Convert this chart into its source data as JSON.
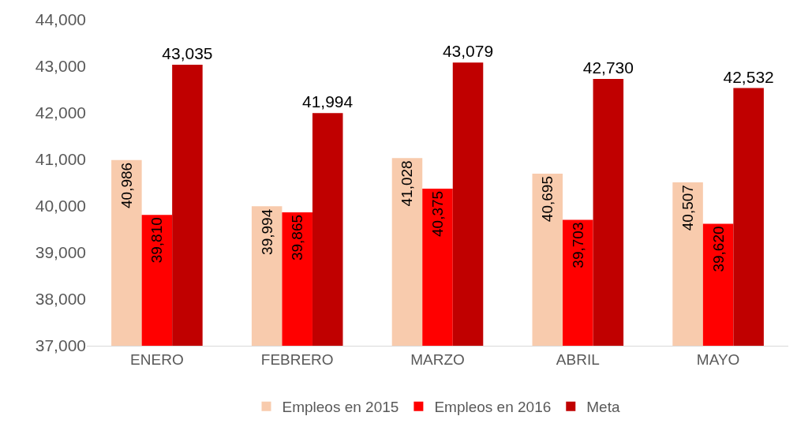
{
  "chart_data": {
    "type": "bar",
    "categories": [
      "ENERO",
      "FEBRERO",
      "MARZO",
      "ABRIL",
      "MAYO"
    ],
    "series": [
      {
        "name": "Empleos en 2015",
        "color": "#f8cbad",
        "values": [
          40986,
          39994,
          41028,
          40695,
          40507
        ],
        "value_labels": [
          "40,986",
          "39,994",
          "41,028",
          "40,695",
          "40,507"
        ]
      },
      {
        "name": "Empleos en 2016",
        "color": "#ff0000",
        "values": [
          39810,
          39865,
          40375,
          39703,
          39620
        ],
        "value_labels": [
          "39,810",
          "39,865",
          "40,375",
          "39,703",
          "39,620"
        ]
      },
      {
        "name": "Meta",
        "color": "#c00000",
        "values": [
          43035,
          41994,
          43079,
          42730,
          42532
        ],
        "value_labels": [
          "43,035",
          "41,994",
          "43,079",
          "42,730",
          "42,532"
        ]
      }
    ],
    "ylim": [
      37000,
      44000
    ],
    "yticks": [
      {
        "value": 37000,
        "label": "37,000"
      },
      {
        "value": 38000,
        "label": "38,000"
      },
      {
        "value": 39000,
        "label": "39,000"
      },
      {
        "value": 40000,
        "label": "40,000"
      },
      {
        "value": 41000,
        "label": "41,000"
      },
      {
        "value": 42000,
        "label": "42,000"
      },
      {
        "value": 43000,
        "label": "43,000"
      },
      {
        "value": 44000,
        "label": "44,000"
      }
    ],
    "grid": false,
    "legend": "bottom"
  }
}
